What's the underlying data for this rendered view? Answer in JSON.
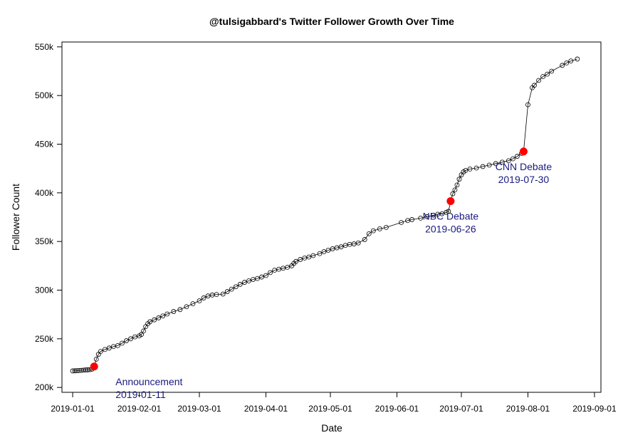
{
  "chart_data": {
    "type": "scatter",
    "title": "@tulsigabbard's Twitter Follower Growth Over Time",
    "xlabel": "Date",
    "ylabel": "Follower Count",
    "xlim": [
      "2018-12-27",
      "2019-09-04"
    ],
    "ylim": [
      195000,
      555000
    ],
    "x_ticks": [
      "2019-01-01",
      "2019-02-01",
      "2019-03-01",
      "2019-04-01",
      "2019-05-01",
      "2019-06-01",
      "2019-07-01",
      "2019-08-01",
      "2019-09-01"
    ],
    "y_ticks": [
      200000,
      250000,
      300000,
      350000,
      400000,
      450000,
      500000,
      550000
    ],
    "y_tick_labels": [
      "200k",
      "250k",
      "300k",
      "350k",
      "400k",
      "450k",
      "500k",
      "550k"
    ],
    "grid": false,
    "line": true,
    "series": [
      {
        "marker": "open-circle",
        "color": "#000000",
        "points": [
          [
            "2019-01-01",
            217000
          ],
          [
            "2019-01-02",
            217100
          ],
          [
            "2019-01-03",
            217200
          ],
          [
            "2019-01-04",
            217400
          ],
          [
            "2019-01-05",
            217600
          ],
          [
            "2019-01-06",
            217800
          ],
          [
            "2019-01-07",
            218000
          ],
          [
            "2019-01-08",
            218100
          ],
          [
            "2019-01-09",
            218300
          ],
          [
            "2019-01-10",
            218800
          ],
          [
            "2019-01-11",
            221500
          ],
          [
            "2019-01-12",
            229000
          ],
          [
            "2019-01-13",
            234000
          ],
          [
            "2019-01-14",
            237000
          ],
          [
            "2019-01-16",
            239000
          ],
          [
            "2019-01-18",
            240500
          ],
          [
            "2019-01-20",
            242000
          ],
          [
            "2019-01-22",
            243000
          ],
          [
            "2019-01-24",
            245500
          ],
          [
            "2019-01-26",
            248000
          ],
          [
            "2019-01-28",
            250000
          ],
          [
            "2019-01-30",
            252000
          ],
          [
            "2019-02-01",
            253000
          ],
          [
            "2019-02-02",
            254500
          ],
          [
            "2019-02-03",
            258000
          ],
          [
            "2019-02-04",
            262500
          ],
          [
            "2019-02-05",
            265500
          ],
          [
            "2019-02-06",
            267500
          ],
          [
            "2019-02-08",
            269500
          ],
          [
            "2019-02-10",
            271500
          ],
          [
            "2019-02-12",
            273500
          ],
          [
            "2019-02-14",
            275500
          ],
          [
            "2019-02-17",
            278000
          ],
          [
            "2019-02-20",
            280000
          ],
          [
            "2019-02-23",
            283000
          ],
          [
            "2019-02-26",
            286000
          ],
          [
            "2019-03-01",
            289000
          ],
          [
            "2019-03-03",
            292000
          ],
          [
            "2019-03-05",
            294000
          ],
          [
            "2019-03-07",
            295000
          ],
          [
            "2019-03-09",
            295500
          ],
          [
            "2019-03-12",
            296000
          ],
          [
            "2019-03-14",
            298500
          ],
          [
            "2019-03-16",
            301000
          ],
          [
            "2019-03-18",
            303500
          ],
          [
            "2019-03-20",
            306000
          ],
          [
            "2019-03-22",
            308000
          ],
          [
            "2019-03-24",
            309500
          ],
          [
            "2019-03-26",
            311000
          ],
          [
            "2019-03-28",
            312000
          ],
          [
            "2019-03-30",
            313500
          ],
          [
            "2019-04-01",
            315000
          ],
          [
            "2019-04-03",
            318000
          ],
          [
            "2019-04-05",
            320500
          ],
          [
            "2019-04-07",
            321500
          ],
          [
            "2019-04-09",
            322500
          ],
          [
            "2019-04-11",
            323500
          ],
          [
            "2019-04-13",
            325000
          ],
          [
            "2019-04-14",
            327500
          ],
          [
            "2019-04-15",
            329500
          ],
          [
            "2019-04-17",
            331500
          ],
          [
            "2019-04-19",
            333000
          ],
          [
            "2019-04-21",
            334000
          ],
          [
            "2019-04-23",
            335500
          ],
          [
            "2019-04-26",
            337500
          ],
          [
            "2019-04-28",
            339500
          ],
          [
            "2019-04-30",
            341000
          ],
          [
            "2019-05-02",
            342500
          ],
          [
            "2019-05-04",
            343500
          ],
          [
            "2019-05-06",
            344500
          ],
          [
            "2019-05-08",
            346000
          ],
          [
            "2019-05-10",
            347000
          ],
          [
            "2019-05-12",
            347500
          ],
          [
            "2019-05-14",
            348500
          ],
          [
            "2019-05-17",
            352000
          ],
          [
            "2019-05-19",
            358000
          ],
          [
            "2019-05-21",
            361000
          ],
          [
            "2019-05-24",
            363000
          ],
          [
            "2019-05-27",
            364500
          ],
          [
            "2019-06-03",
            369500
          ],
          [
            "2019-06-06",
            371500
          ],
          [
            "2019-06-08",
            372500
          ],
          [
            "2019-06-12",
            374000
          ],
          [
            "2019-06-15",
            375500
          ],
          [
            "2019-06-18",
            377000
          ],
          [
            "2019-06-20",
            378000
          ],
          [
            "2019-06-22",
            378500
          ],
          [
            "2019-06-24",
            380000
          ],
          [
            "2019-06-25",
            381000
          ],
          [
            "2019-06-26",
            391500
          ],
          [
            "2019-06-27",
            399000
          ],
          [
            "2019-06-28",
            403000
          ],
          [
            "2019-06-29",
            408000
          ],
          [
            "2019-06-30",
            414000
          ],
          [
            "2019-07-01",
            418500
          ],
          [
            "2019-07-02",
            421500
          ],
          [
            "2019-07-03",
            423000
          ],
          [
            "2019-07-05",
            424500
          ],
          [
            "2019-07-08",
            425500
          ],
          [
            "2019-07-11",
            427000
          ],
          [
            "2019-07-14",
            428500
          ],
          [
            "2019-07-17",
            430000
          ],
          [
            "2019-07-20",
            431500
          ],
          [
            "2019-07-23",
            433000
          ],
          [
            "2019-07-25",
            435000
          ],
          [
            "2019-07-27",
            437500
          ],
          [
            "2019-07-29",
            440500
          ],
          [
            "2019-07-30",
            442500
          ],
          [
            "2019-08-01",
            490500
          ],
          [
            "2019-08-03",
            508000
          ],
          [
            "2019-08-04",
            510500
          ],
          [
            "2019-08-06",
            515500
          ],
          [
            "2019-08-08",
            519500
          ],
          [
            "2019-08-10",
            522000
          ],
          [
            "2019-08-12",
            525000
          ],
          [
            "2019-08-17",
            531000
          ],
          [
            "2019-08-19",
            533500
          ],
          [
            "2019-08-21",
            535500
          ],
          [
            "2019-08-24",
            537500
          ]
        ]
      }
    ],
    "highlights": [
      {
        "date": "2019-01-11",
        "value": 221500,
        "label": "Announcement",
        "date_label": "2019-01-11",
        "color": "#ff0000",
        "text_color": "#1a1a80",
        "label_side": "below-right"
      },
      {
        "date": "2019-06-26",
        "value": 391500,
        "label": "NBC Debate",
        "date_label": "2019-06-26",
        "color": "#ff0000",
        "text_color": "#1a1a80",
        "label_side": "below-left"
      },
      {
        "date": "2019-07-30",
        "value": 442500,
        "label": "CNN Debate",
        "date_label": "2019-07-30",
        "color": "#ff0000",
        "text_color": "#1a1a80",
        "label_side": "below-right"
      }
    ]
  }
}
